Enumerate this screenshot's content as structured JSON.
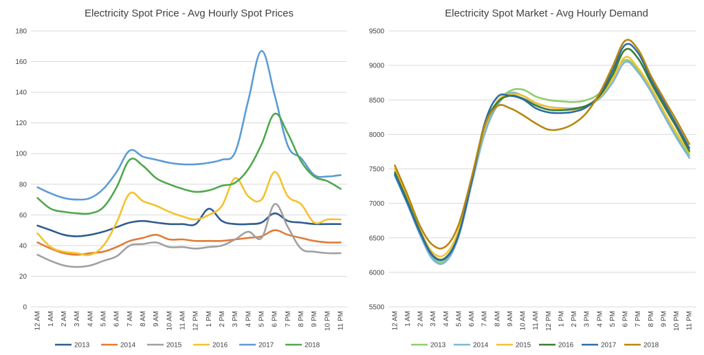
{
  "chart_data": [
    {
      "type": "line",
      "title": "Electricity Spot Price  - Avg Hourly Spot Prices",
      "xlabel": "",
      "ylabel": "",
      "ylim": [
        0,
        180
      ],
      "yticks": [
        0,
        20,
        40,
        60,
        80,
        100,
        120,
        140,
        160,
        180
      ],
      "grid": true,
      "legend": "bottom",
      "categories": [
        "12 AM",
        "1 AM",
        "2 AM",
        "3 AM",
        "4 AM",
        "5 AM",
        "6 AM",
        "7 AM",
        "8 AM",
        "9 AM",
        "10 AM",
        "11 AM",
        "12 PM",
        "1 PM",
        "2 PM",
        "3 PM",
        "4 PM",
        "5 PM",
        "6 PM",
        "7 PM",
        "8 PM",
        "9 PM",
        "10 PM",
        "11 PM"
      ],
      "series": [
        {
          "name": "2013",
          "color": "#2e5c8f",
          "values": [
            53,
            50,
            47,
            46,
            47,
            49,
            52,
            55,
            56,
            55,
            54,
            54,
            54,
            64,
            56,
            54,
            54,
            55,
            61,
            56,
            55,
            54,
            54,
            54
          ]
        },
        {
          "name": "2014",
          "color": "#e07b39",
          "values": [
            42,
            38,
            35,
            34,
            35,
            36,
            39,
            43,
            45,
            47,
            44,
            44,
            43,
            43,
            43,
            44,
            45,
            46,
            50,
            47,
            45,
            43,
            42,
            42
          ]
        },
        {
          "name": "2015",
          "color": "#a0a0a0",
          "values": [
            34,
            30,
            27,
            26,
            27,
            30,
            33,
            40,
            41,
            42,
            39,
            39,
            38,
            39,
            40,
            44,
            49,
            45,
            67,
            52,
            38,
            36,
            35,
            35
          ]
        },
        {
          "name": "2016",
          "color": "#f5c12e",
          "values": [
            48,
            39,
            36,
            35,
            34,
            40,
            55,
            74,
            69,
            66,
            62,
            59,
            57,
            60,
            66,
            84,
            72,
            70,
            88,
            72,
            67,
            55,
            57,
            57
          ]
        },
        {
          "name": "2017",
          "color": "#5b9bd5",
          "values": [
            78,
            74,
            71,
            70,
            71,
            77,
            88,
            102,
            98,
            96,
            94,
            93,
            93,
            94,
            96,
            101,
            135,
            167,
            138,
            105,
            97,
            86,
            85,
            86
          ]
        },
        {
          "name": "2018",
          "color": "#4ea84e",
          "values": [
            71,
            64,
            62,
            61,
            61,
            65,
            78,
            96,
            92,
            84,
            80,
            77,
            75,
            76,
            79,
            81,
            90,
            106,
            126,
            113,
            95,
            85,
            82,
            77
          ]
        }
      ]
    },
    {
      "type": "line",
      "title": "Electricity Spot Market  -  Avg Hourly Demand",
      "xlabel": "",
      "ylabel": "",
      "ylim": [
        5500,
        9500
      ],
      "yticks": [
        5500,
        6000,
        6500,
        7000,
        7500,
        8000,
        8500,
        9000,
        9500
      ],
      "grid": true,
      "legend": "bottom",
      "categories": [
        "12 AM",
        "1 AM",
        "2 AM",
        "3 AM",
        "4 AM",
        "5 AM",
        "6 AM",
        "7 AM",
        "8 AM",
        "9 AM",
        "10 AM",
        "11 AM",
        "12 PM",
        "1 PM",
        "2 PM",
        "3 PM",
        "4 PM",
        "5 PM",
        "6 PM",
        "7 PM",
        "8 PM",
        "9 PM",
        "10 PM",
        "11 PM"
      ],
      "series": [
        {
          "name": "2013",
          "color": "#8fce6a",
          "values": [
            7420,
            7000,
            6550,
            6200,
            6180,
            6550,
            7300,
            8050,
            8450,
            8630,
            8650,
            8550,
            8500,
            8480,
            8470,
            8500,
            8600,
            8850,
            9080,
            8930,
            8650,
            8300,
            7980,
            7700
          ]
        },
        {
          "name": "2014",
          "color": "#7cb5d8",
          "values": [
            7400,
            6980,
            6530,
            6180,
            6160,
            6530,
            7280,
            8000,
            8420,
            8600,
            8560,
            8450,
            8400,
            8380,
            8380,
            8420,
            8520,
            8750,
            9050,
            8900,
            8620,
            8280,
            7950,
            7660
          ]
        },
        {
          "name": "2015",
          "color": "#f5c12e",
          "values": [
            7500,
            7080,
            6600,
            6280,
            6270,
            6620,
            7350,
            8080,
            8480,
            8580,
            8560,
            8460,
            8400,
            8370,
            8360,
            8400,
            8540,
            8800,
            9120,
            8960,
            8680,
            8340,
            8020,
            7740
          ]
        },
        {
          "name": "2016",
          "color": "#3a7d32",
          "values": [
            7450,
            7030,
            6580,
            6240,
            6220,
            6560,
            7320,
            8120,
            8460,
            8560,
            8520,
            8420,
            8360,
            8350,
            8370,
            8420,
            8560,
            8860,
            9230,
            9100,
            8750,
            8420,
            8100,
            7760
          ]
        },
        {
          "name": "2017",
          "color": "#2e6da4",
          "values": [
            7420,
            7000,
            6560,
            6230,
            6210,
            6550,
            7320,
            8150,
            8540,
            8560,
            8510,
            8380,
            8320,
            8310,
            8330,
            8400,
            8580,
            8920,
            9300,
            9180,
            8800,
            8470,
            8140,
            7800
          ]
        },
        {
          "name": "2018",
          "color": "#b8860b",
          "values": [
            7550,
            7120,
            6660,
            6390,
            6380,
            6700,
            7380,
            8120,
            8410,
            8380,
            8280,
            8160,
            8070,
            8080,
            8160,
            8320,
            8600,
            8980,
            9360,
            9230,
            8850,
            8520,
            8200,
            7860
          ]
        }
      ]
    }
  ]
}
